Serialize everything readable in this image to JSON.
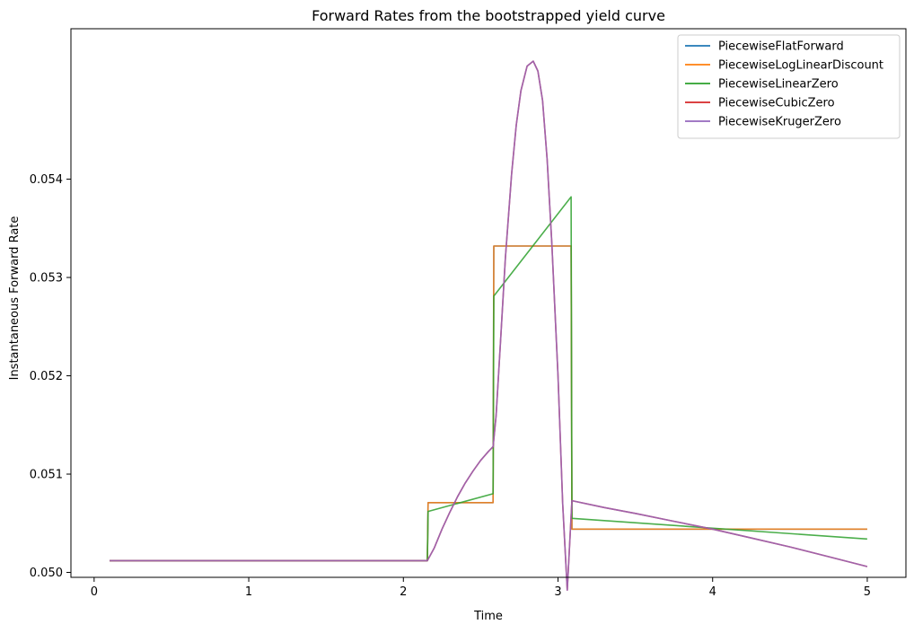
{
  "chart_data": {
    "type": "line",
    "title": "Forward Rates from the bootstrapped yield curve",
    "xlabel": "Time",
    "ylabel": "Instantaneous Forward Rate",
    "xlim": [
      -0.15,
      5.25
    ],
    "ylim": [
      0.04995,
      0.05553
    ],
    "xticks": [
      0,
      1,
      2,
      3,
      4,
      5
    ],
    "yticks": [
      0.05,
      0.051,
      0.052,
      0.053,
      0.054
    ],
    "ytick_labels": [
      "0.050",
      "0.051",
      "0.052",
      "0.053",
      "0.054"
    ],
    "grid": false,
    "legend_position": "top-right",
    "series": [
      {
        "name": "PiecewiseFlatForward",
        "color": "#1f77b4",
        "x": [
          0.1,
          2.155,
          2.16,
          2.58,
          2.585,
          3.085,
          3.09,
          5.0
        ],
        "y": [
          0.05012,
          0.05012,
          0.05071,
          0.05071,
          0.05332,
          0.05332,
          0.05044,
          0.05044
        ]
      },
      {
        "name": "PiecewiseLogLinearDiscount",
        "color": "#ff7f0e",
        "x": [
          0.1,
          2.155,
          2.16,
          2.58,
          2.585,
          3.085,
          3.09,
          5.0
        ],
        "y": [
          0.05012,
          0.05012,
          0.05071,
          0.05071,
          0.05332,
          0.05332,
          0.05044,
          0.05044
        ]
      },
      {
        "name": "PiecewiseLinearZero",
        "color": "#2ca02c",
        "x": [
          0.1,
          2.155,
          2.16,
          2.58,
          2.585,
          3.085,
          3.09,
          5.0
        ],
        "y": [
          0.05012,
          0.05012,
          0.05062,
          0.0508,
          0.05281,
          0.05382,
          0.05055,
          0.05034
        ]
      },
      {
        "name": "PiecewiseCubicZero",
        "color": "#d62728",
        "x": [
          0.1,
          2.155,
          2.2,
          2.25,
          2.3,
          2.35,
          2.4,
          2.45,
          2.5,
          2.55,
          2.58,
          2.6,
          2.63,
          2.66,
          2.7,
          2.73,
          2.76,
          2.8,
          2.84,
          2.87,
          2.9,
          2.93,
          2.96,
          3.0,
          3.03,
          3.06,
          3.09,
          3.3,
          3.5,
          3.75,
          4.0,
          4.25,
          4.5,
          4.75,
          5.0
        ],
        "y": [
          0.05012,
          0.05012,
          0.05025,
          0.05044,
          0.05061,
          0.05077,
          0.05091,
          0.05103,
          0.05114,
          0.05123,
          0.05128,
          0.0516,
          0.0524,
          0.0532,
          0.05405,
          0.05455,
          0.0549,
          0.05515,
          0.0552,
          0.0551,
          0.0548,
          0.0542,
          0.05335,
          0.052,
          0.0507,
          0.04982,
          0.05073,
          0.05066,
          0.0506,
          0.05052,
          0.05044,
          0.05035,
          0.05026,
          0.05016,
          0.05006
        ]
      },
      {
        "name": "PiecewiseKrugerZero",
        "color": "#9467bd",
        "x": [
          0.1,
          2.155,
          2.2,
          2.25,
          2.3,
          2.35,
          2.4,
          2.45,
          2.5,
          2.55,
          2.58,
          2.6,
          2.63,
          2.66,
          2.7,
          2.73,
          2.76,
          2.8,
          2.84,
          2.87,
          2.9,
          2.93,
          2.96,
          3.0,
          3.03,
          3.06,
          3.09,
          3.3,
          3.5,
          3.75,
          4.0,
          4.25,
          4.5,
          4.75,
          5.0
        ],
        "y": [
          0.05012,
          0.05012,
          0.05025,
          0.05044,
          0.05061,
          0.05077,
          0.05091,
          0.05103,
          0.05114,
          0.05123,
          0.05128,
          0.0516,
          0.0524,
          0.0532,
          0.05405,
          0.05455,
          0.0549,
          0.05515,
          0.0552,
          0.0551,
          0.0548,
          0.0542,
          0.05335,
          0.052,
          0.0507,
          0.04982,
          0.05073,
          0.05066,
          0.0506,
          0.05052,
          0.05044,
          0.05035,
          0.05026,
          0.05016,
          0.05006
        ]
      }
    ]
  }
}
